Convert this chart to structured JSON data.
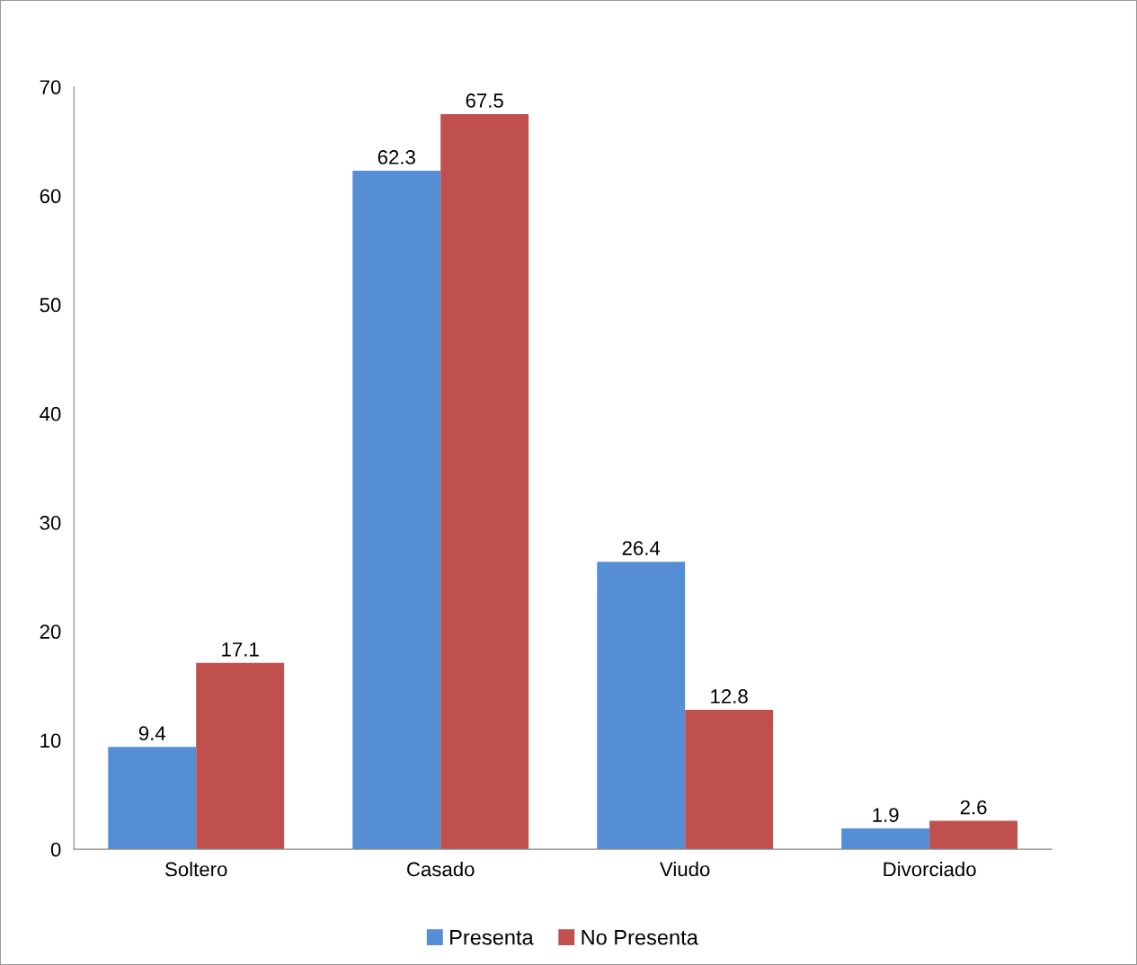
{
  "chart_data": {
    "type": "bar",
    "categories": [
      "Soltero",
      "Casado",
      "Viudo",
      "Divorciado"
    ],
    "series": [
      {
        "name": "Presenta",
        "color": "#558ed5",
        "values": [
          9.4,
          62.3,
          26.4,
          1.9
        ]
      },
      {
        "name": "No Presenta",
        "color": "#c0504d",
        "values": [
          17.1,
          67.5,
          12.8,
          2.6
        ]
      }
    ],
    "ylim": [
      0,
      70
    ],
    "yticks": [
      0,
      10,
      20,
      30,
      40,
      50,
      60,
      70
    ],
    "grid": false,
    "legend": "bottom",
    "data_labels": true
  }
}
